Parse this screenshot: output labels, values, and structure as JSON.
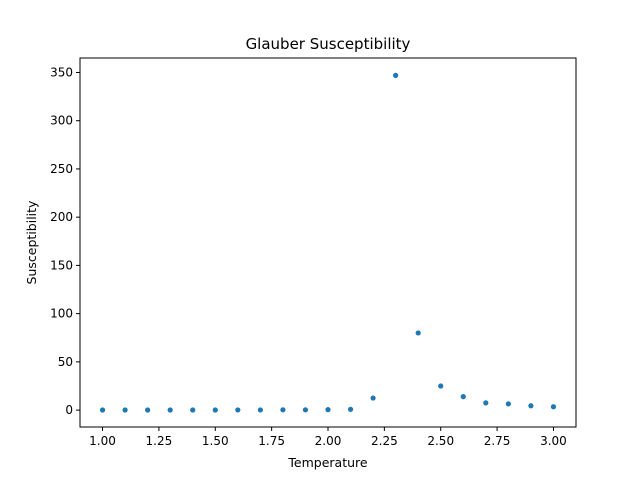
{
  "chart_data": {
    "type": "scatter",
    "title": "Glauber Susceptibility",
    "xlabel": "Temperature",
    "ylabel": "Susceptibility",
    "xlim": [
      0.9,
      3.1
    ],
    "ylim": [
      -17.5,
      365
    ],
    "grid": false,
    "marker_color": "#1f77b4",
    "x_ticks": [
      1.0,
      1.25,
      1.5,
      1.75,
      2.0,
      2.25,
      2.5,
      2.75,
      3.0
    ],
    "x_tick_labels": [
      "1.00",
      "1.25",
      "1.50",
      "1.75",
      "2.00",
      "2.25",
      "2.50",
      "2.75",
      "3.00"
    ],
    "y_ticks": [
      0,
      50,
      100,
      150,
      200,
      250,
      300,
      350
    ],
    "y_tick_labels": [
      "0",
      "50",
      "100",
      "150",
      "200",
      "250",
      "300",
      "350"
    ],
    "x": [
      1.0,
      1.1,
      1.2,
      1.3,
      1.4,
      1.5,
      1.6,
      1.7,
      1.8,
      1.9,
      2.0,
      2.1,
      2.2,
      2.3,
      2.4,
      2.5,
      2.6,
      2.7,
      2.8,
      2.9,
      3.0
    ],
    "y": [
      0.1,
      0.1,
      0.1,
      0.1,
      0.1,
      0.1,
      0.2,
      0.2,
      0.3,
      0.3,
      0.5,
      0.8,
      12.5,
      347,
      80,
      25,
      14,
      7.5,
      6.5,
      4.5,
      3.5
    ]
  }
}
